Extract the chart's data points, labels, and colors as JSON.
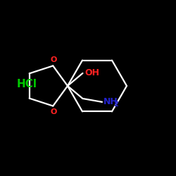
{
  "background_color": "#000000",
  "bond_color": "#ffffff",
  "O_color": "#ff2222",
  "OH_color": "#ff2222",
  "NH2_color": "#2222cc",
  "HCl_color": "#00cc00",
  "figsize": [
    2.5,
    2.5
  ],
  "dpi": 100,
  "HCl_text": "HCl",
  "OH_text": "OH",
  "NH2_text": "NH",
  "NH2_sub": "2",
  "O_text": "O",
  "lw": 1.6
}
